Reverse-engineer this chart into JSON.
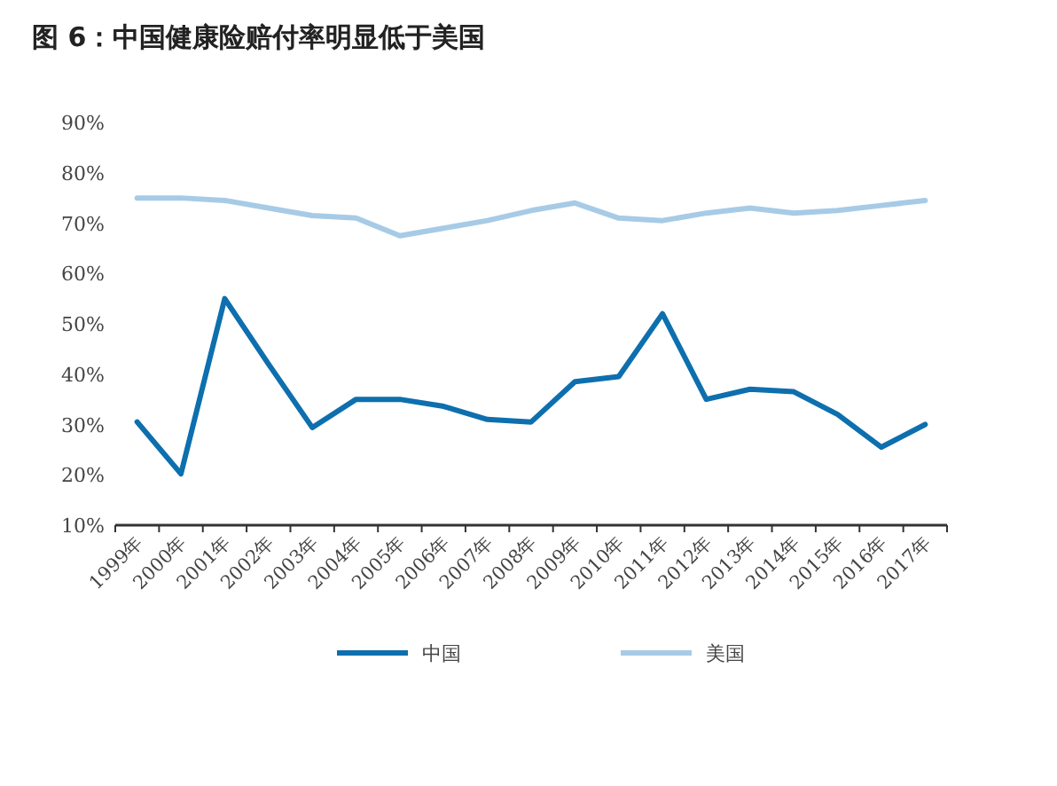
{
  "chart_data": {
    "type": "line",
    "title": "图 6：中国健康险赔付率明显低于美国",
    "categories": [
      "1999年",
      "2000年",
      "2001年",
      "2002年",
      "2003年",
      "2004年",
      "2005年",
      "2006年",
      "2007年",
      "2008年",
      "2009年",
      "2010年",
      "2011年",
      "2012年",
      "2013年",
      "2014年",
      "2015年",
      "2016年",
      "2017年"
    ],
    "series": [
      {
        "name": "中国",
        "color": "#0e6fae",
        "values": [
          30.5,
          20.2,
          55,
          42,
          29.4,
          35,
          35,
          33.6,
          31,
          30.5,
          38.5,
          39.5,
          52,
          35,
          37,
          36.5,
          32,
          25.5,
          30
        ]
      },
      {
        "name": "美国",
        "color": "#a7cbe6",
        "values": [
          75,
          75,
          74.5,
          73,
          71.5,
          71,
          67.5,
          69,
          70.5,
          72.5,
          74,
          71,
          70.5,
          72,
          73,
          72,
          72.5,
          73.5,
          74.5
        ]
      }
    ],
    "ylim": [
      10,
      90
    ],
    "yticks": [
      {
        "value": 10,
        "label": "10%"
      },
      {
        "value": 20,
        "label": "20%"
      },
      {
        "value": 30,
        "label": "30%"
      },
      {
        "value": 40,
        "label": "40%"
      },
      {
        "value": 50,
        "label": "50%"
      },
      {
        "value": 60,
        "label": "60%"
      },
      {
        "value": 70,
        "label": "70%"
      },
      {
        "value": 80,
        "label": "80%"
      },
      {
        "value": 90,
        "label": "90%"
      }
    ],
    "grid": false,
    "legend": "bottom",
    "marker": "none",
    "line_style": "solid"
  }
}
